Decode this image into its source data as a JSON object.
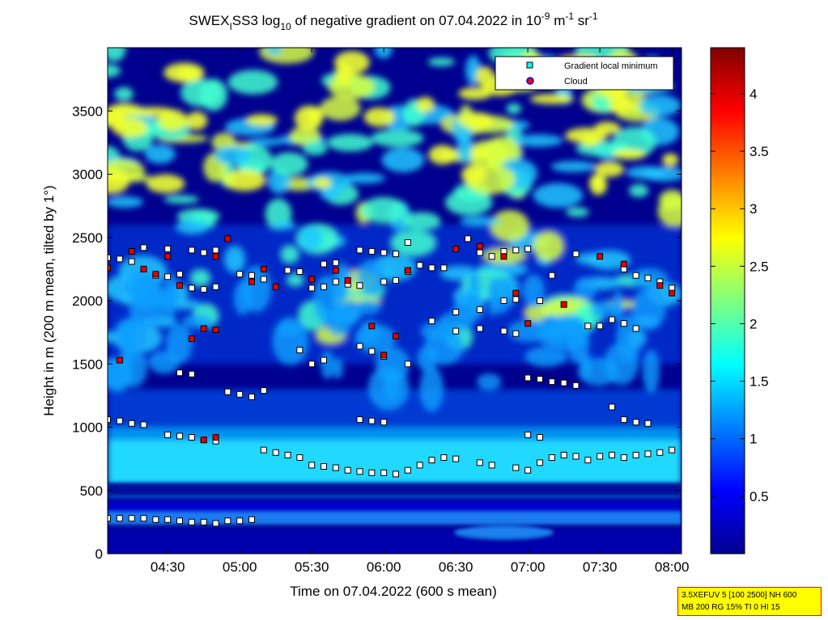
{
  "chart_data": {
    "type": "heatmap",
    "title_parts": {
      "station": "SWEX",
      "station_sub": "I",
      "instrument": "SS3 log",
      "log_sub": "10",
      "desc": " of negative gradient on 07.04.2022 in 10",
      "exp1": "-9",
      "unit1": " m",
      "exp2": "-1",
      "unit2": " sr",
      "exp3": "-1"
    },
    "xlabel": "Time on 07.04.2022 (600 s mean)",
    "ylabel": "Height in m (200 m mean, tilted by 1°)",
    "x_range": [
      "04:05",
      "08:04"
    ],
    "xtick_labels": [
      "04:30",
      "05:00",
      "05:30",
      "06:00",
      "06:30",
      "07:00",
      "07:30",
      "08:00"
    ],
    "ylim": [
      0,
      4000
    ],
    "ytick_values": [
      0,
      500,
      1000,
      1500,
      2000,
      2500,
      3000,
      3500
    ],
    "colorbar": {
      "range": [
        0,
        4.4
      ],
      "tick_values": [
        0.5,
        1,
        1.5,
        2,
        2.5,
        3,
        3.5,
        4
      ],
      "colormap": "jet"
    },
    "legend": {
      "placement": "top-right",
      "entries": [
        {
          "label": "Gradient local minimum",
          "marker": "square",
          "color": "#00ffff"
        },
        {
          "label": "Cloud",
          "marker": "circle",
          "color": "#ff0000",
          "edge": "#0000ff"
        }
      ]
    },
    "layers": [
      {
        "name": "Gradient local minimum",
        "points": [
          [
            "04:05",
            2340
          ],
          [
            "04:10",
            2330
          ],
          [
            "04:15",
            2310
          ],
          [
            "04:25",
            2200
          ],
          [
            "04:30",
            2190
          ],
          [
            "04:35",
            2210
          ],
          [
            "04:40",
            2100
          ],
          [
            "04:45",
            2090
          ],
          [
            "04:50",
            2110
          ],
          [
            "04:20",
            2420
          ],
          [
            "04:30",
            2410
          ],
          [
            "04:40",
            2400
          ],
          [
            "04:45",
            2380
          ],
          [
            "04:50",
            2400
          ],
          [
            "05:00",
            2210
          ],
          [
            "05:05",
            2200
          ],
          [
            "05:10",
            2170
          ],
          [
            "05:20",
            2240
          ],
          [
            "05:25",
            2230
          ],
          [
            "05:30",
            2100
          ],
          [
            "05:35",
            2110
          ],
          [
            "05:40",
            2150
          ],
          [
            "05:45",
            2130
          ],
          [
            "05:50",
            2120
          ],
          [
            "05:35",
            2290
          ],
          [
            "05:40",
            2300
          ],
          [
            "05:50",
            2400
          ],
          [
            "05:55",
            2390
          ],
          [
            "06:00",
            2380
          ],
          [
            "06:05",
            2370
          ],
          [
            "06:10",
            2460
          ],
          [
            "06:15",
            2280
          ],
          [
            "06:20",
            2260
          ],
          [
            "06:25",
            2260
          ],
          [
            "06:35",
            2490
          ],
          [
            "06:40",
            2380
          ],
          [
            "06:45",
            2350
          ],
          [
            "06:50",
            2390
          ],
          [
            "06:55",
            2400
          ],
          [
            "07:00",
            2410
          ],
          [
            "07:10",
            2200
          ],
          [
            "07:20",
            2370
          ],
          [
            "07:40",
            2250
          ],
          [
            "07:45",
            2200
          ],
          [
            "07:50",
            2180
          ],
          [
            "07:55",
            2150
          ],
          [
            "08:00",
            2100
          ],
          [
            "06:00",
            2150
          ],
          [
            "06:05",
            2160
          ],
          [
            "06:10",
            2230
          ],
          [
            "06:30",
            1910
          ],
          [
            "06:40",
            1930
          ],
          [
            "06:50",
            2000
          ],
          [
            "06:55",
            2010
          ],
          [
            "07:05",
            2000
          ],
          [
            "04:35",
            1430
          ],
          [
            "04:40",
            1420
          ],
          [
            "04:55",
            1280
          ],
          [
            "05:00",
            1260
          ],
          [
            "05:05",
            1240
          ],
          [
            "05:10",
            1290
          ],
          [
            "05:25",
            1610
          ],
          [
            "05:30",
            1500
          ],
          [
            "05:35",
            1530
          ],
          [
            "05:50",
            1640
          ],
          [
            "05:55",
            1600
          ],
          [
            "06:00",
            1560
          ],
          [
            "06:10",
            1500
          ],
          [
            "06:20",
            1840
          ],
          [
            "06:30",
            1760
          ],
          [
            "06:40",
            1780
          ],
          [
            "06:50",
            1760
          ],
          [
            "06:55",
            1740
          ],
          [
            "07:00",
            1390
          ],
          [
            "07:05",
            1380
          ],
          [
            "07:10",
            1360
          ],
          [
            "07:15",
            1350
          ],
          [
            "07:20",
            1330
          ],
          [
            "07:25",
            1800
          ],
          [
            "07:30",
            1800
          ],
          [
            "07:35",
            1850
          ],
          [
            "07:40",
            1820
          ],
          [
            "07:45",
            1780
          ],
          [
            "04:05",
            1060
          ],
          [
            "04:10",
            1050
          ],
          [
            "04:15",
            1030
          ],
          [
            "04:20",
            1020
          ],
          [
            "04:30",
            940
          ],
          [
            "04:35",
            930
          ],
          [
            "04:40",
            920
          ],
          [
            "04:45",
            900
          ],
          [
            "04:50",
            890
          ],
          [
            "05:50",
            1060
          ],
          [
            "05:55",
            1050
          ],
          [
            "06:00",
            1040
          ],
          [
            "07:00",
            940
          ],
          [
            "07:05",
            920
          ],
          [
            "07:35",
            1160
          ],
          [
            "07:40",
            1060
          ],
          [
            "07:45",
            1040
          ],
          [
            "07:50",
            1030
          ],
          [
            "05:10",
            820
          ],
          [
            "05:15",
            800
          ],
          [
            "05:20",
            780
          ],
          [
            "05:25",
            760
          ],
          [
            "05:30",
            700
          ],
          [
            "05:35",
            690
          ],
          [
            "05:40",
            680
          ],
          [
            "05:45",
            660
          ],
          [
            "05:50",
            650
          ],
          [
            "05:55",
            640
          ],
          [
            "06:00",
            640
          ],
          [
            "06:05",
            630
          ],
          [
            "06:10",
            660
          ],
          [
            "06:15",
            700
          ],
          [
            "06:20",
            740
          ],
          [
            "06:25",
            760
          ],
          [
            "06:30",
            750
          ],
          [
            "06:40",
            720
          ],
          [
            "06:45",
            700
          ],
          [
            "06:55",
            680
          ],
          [
            "07:00",
            660
          ],
          [
            "07:05",
            720
          ],
          [
            "07:10",
            760
          ],
          [
            "07:15",
            780
          ],
          [
            "07:20",
            770
          ],
          [
            "07:25",
            740
          ],
          [
            "07:30",
            770
          ],
          [
            "07:35",
            780
          ],
          [
            "07:40",
            760
          ],
          [
            "07:45",
            780
          ],
          [
            "07:50",
            790
          ],
          [
            "07:55",
            800
          ],
          [
            "08:00",
            820
          ],
          [
            "04:05",
            280
          ],
          [
            "04:10",
            280
          ],
          [
            "04:15",
            280
          ],
          [
            "04:20",
            280
          ],
          [
            "04:25",
            270
          ],
          [
            "04:30",
            270
          ],
          [
            "04:35",
            260
          ],
          [
            "04:40",
            250
          ],
          [
            "04:45",
            250
          ],
          [
            "04:50",
            240
          ],
          [
            "04:55",
            260
          ],
          [
            "05:00",
            260
          ],
          [
            "05:05",
            270
          ]
        ]
      },
      {
        "name": "Cloud",
        "points": [
          [
            "04:05",
            2260
          ],
          [
            "04:10",
            1530
          ],
          [
            "04:15",
            2390
          ],
          [
            "04:20",
            2250
          ],
          [
            "04:25",
            2210
          ],
          [
            "04:30",
            2350
          ],
          [
            "04:35",
            2120
          ],
          [
            "04:40",
            1700
          ],
          [
            "04:45",
            1780
          ],
          [
            "04:50",
            1770
          ],
          [
            "04:50",
            2350
          ],
          [
            "04:55",
            2490
          ],
          [
            "05:05",
            2150
          ],
          [
            "05:10",
            2250
          ],
          [
            "05:15",
            2110
          ],
          [
            "05:30",
            2170
          ],
          [
            "05:40",
            2240
          ],
          [
            "05:45",
            2160
          ],
          [
            "05:55",
            1800
          ],
          [
            "06:00",
            1570
          ],
          [
            "06:05",
            1720
          ],
          [
            "06:10",
            2240
          ],
          [
            "06:30",
            2410
          ],
          [
            "06:40",
            2430
          ],
          [
            "06:50",
            2350
          ],
          [
            "06:55",
            2060
          ],
          [
            "07:00",
            1820
          ],
          [
            "07:15",
            1970
          ],
          [
            "07:30",
            2350
          ],
          [
            "07:40",
            2290
          ],
          [
            "07:55",
            2120
          ],
          [
            "08:00",
            2060
          ],
          [
            "04:50",
            920
          ],
          [
            "04:45",
            900
          ]
        ]
      }
    ]
  },
  "info_box": {
    "line1": "3.5XEFUV 5 [100 2500] NH 600",
    "line2": "MB 200 RG 15% TI 0 HI 15"
  }
}
